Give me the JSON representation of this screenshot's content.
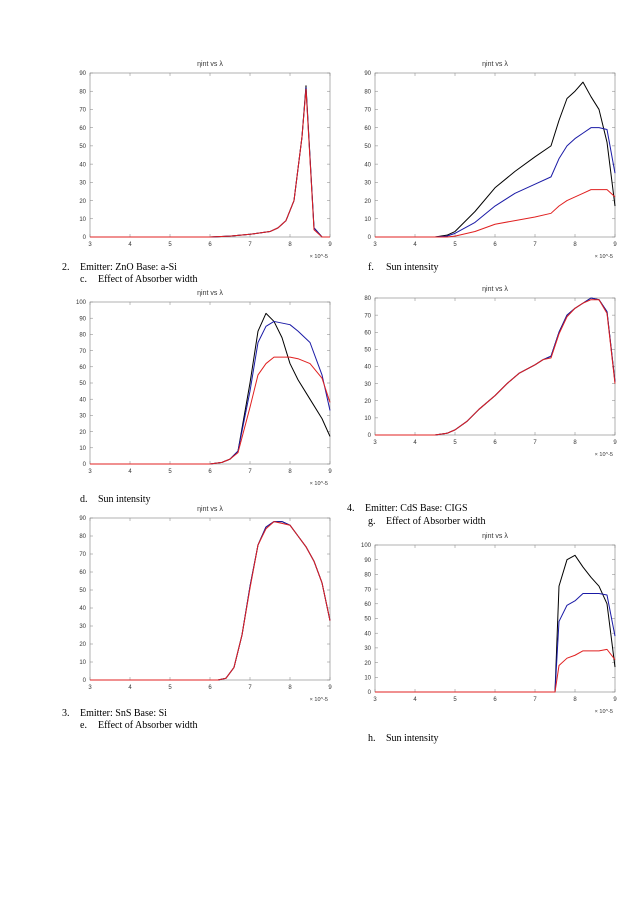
{
  "captions": {
    "c2": {
      "num": "2.",
      "text": "Emitter: ZnO Base: a-Si"
    },
    "c_c": {
      "num": "c.",
      "text": "Effect of Absorber width"
    },
    "c_d": {
      "num": "d.",
      "text": "Sun intensity"
    },
    "c3": {
      "num": "3.",
      "text": "Emitter: SnS Base: Si"
    },
    "c_e": {
      "num": "e.",
      "text": "Effect of Absorber width"
    },
    "c_f": {
      "num": "f.",
      "text": "Sun intensity"
    },
    "c4": {
      "num": "4.",
      "text": "Emitter: CdS  Base: CIGS"
    },
    "c_g": {
      "num": "g.",
      "text": "Effect of Absorber width"
    },
    "c_h": {
      "num": "h.",
      "text": "Sun intensity"
    }
  },
  "chart_data": [
    {
      "id": "plot-1",
      "type": "line",
      "title": "ηint vs λ",
      "xlim": [
        3,
        9
      ],
      "ylim": [
        0,
        90
      ],
      "xticks": [
        "3",
        "4",
        "5",
        "6",
        "7",
        "8",
        "9"
      ],
      "yticks": [
        "0",
        "10",
        "20",
        "30",
        "40",
        "50",
        "60",
        "70",
        "80",
        "90"
      ],
      "xmultiplier": "× 10^-5",
      "series": [
        {
          "color": "#000000",
          "x": [
            3,
            5.7,
            6,
            6.5,
            7,
            7.5,
            7.7,
            7.9,
            8.1,
            8.3,
            8.4,
            8.6,
            8.8,
            9
          ],
          "y": [
            0,
            0,
            0,
            0.5,
            1.5,
            3,
            5,
            9,
            20,
            55,
            83,
            5,
            0,
            0
          ]
        },
        {
          "color": "#1a1aa6",
          "x": [
            3,
            5.7,
            6,
            6.5,
            7,
            7.5,
            7.7,
            7.9,
            8.1,
            8.3,
            8.4,
            8.6,
            8.8,
            9
          ],
          "y": [
            0,
            0,
            0,
            0.5,
            1.5,
            3,
            5,
            9,
            20,
            55,
            82,
            5,
            0,
            0
          ]
        },
        {
          "color": "#e02020",
          "x": [
            3,
            5.7,
            6,
            6.5,
            7,
            7.5,
            7.7,
            7.9,
            8.1,
            8.3,
            8.4,
            8.6,
            8.8,
            9
          ],
          "y": [
            0,
            0,
            0,
            0.5,
            1.5,
            3,
            5,
            9,
            20,
            55,
            81,
            4,
            0,
            0
          ]
        }
      ]
    },
    {
      "id": "plot-2",
      "type": "line",
      "title": "ηint vs λ",
      "xlim": [
        3,
        9
      ],
      "ylim": [
        0,
        100
      ],
      "xticks": [
        "3",
        "4",
        "5",
        "6",
        "7",
        "8",
        "9"
      ],
      "yticks": [
        "0",
        "10",
        "20",
        "30",
        "40",
        "50",
        "60",
        "70",
        "80",
        "90",
        "100"
      ],
      "xmultiplier": "× 10^-5",
      "series": [
        {
          "color": "#000000",
          "x": [
            3,
            6,
            6.3,
            6.5,
            6.7,
            7,
            7.2,
            7.4,
            7.6,
            7.8,
            8,
            8.2,
            8.5,
            8.8,
            9
          ],
          "y": [
            0,
            0,
            1,
            3,
            8,
            50,
            82,
            93,
            88,
            78,
            62,
            52,
            40,
            28,
            17
          ]
        },
        {
          "color": "#1a1aa6",
          "x": [
            3,
            6,
            6.3,
            6.5,
            6.7,
            7,
            7.2,
            7.4,
            7.6,
            7.8,
            8,
            8.2,
            8.5,
            8.8,
            9
          ],
          "y": [
            0,
            0,
            1,
            3,
            8,
            45,
            75,
            85,
            88,
            87,
            86,
            82,
            75,
            55,
            33
          ]
        },
        {
          "color": "#e02020",
          "x": [
            3,
            6,
            6.3,
            6.5,
            6.7,
            7,
            7.2,
            7.4,
            7.6,
            7.8,
            8,
            8.2,
            8.5,
            8.8,
            9
          ],
          "y": [
            0,
            0,
            1,
            3,
            7,
            35,
            55,
            62,
            66,
            66,
            66,
            65,
            62,
            53,
            38
          ]
        }
      ]
    },
    {
      "id": "plot-3",
      "type": "line",
      "title": "ηint vs λ",
      "xlim": [
        3,
        9
      ],
      "ylim": [
        0,
        90
      ],
      "xticks": [
        "3",
        "4",
        "5",
        "6",
        "7",
        "8",
        "9"
      ],
      "yticks": [
        "0",
        "10",
        "20",
        "30",
        "40",
        "50",
        "60",
        "70",
        "80",
        "90"
      ],
      "xmultiplier": "× 10^-5",
      "series": [
        {
          "color": "#000000",
          "x": [
            3,
            6.2,
            6.4,
            6.6,
            6.8,
            7,
            7.2,
            7.4,
            7.6,
            7.8,
            8,
            8.2,
            8.4,
            8.6,
            8.8,
            9
          ],
          "y": [
            0,
            0,
            1,
            7,
            25,
            52,
            75,
            85,
            88,
            88,
            86,
            80,
            74,
            66,
            54,
            33
          ]
        },
        {
          "color": "#1a1aa6",
          "x": [
            3,
            6.2,
            6.4,
            6.6,
            6.8,
            7,
            7.2,
            7.4,
            7.6,
            7.8,
            8,
            8.2,
            8.4,
            8.6,
            8.8,
            9
          ],
          "y": [
            0,
            0,
            1,
            7,
            25,
            52,
            75,
            85,
            88,
            88,
            86,
            80,
            74,
            66,
            54,
            33
          ]
        },
        {
          "color": "#e02020",
          "x": [
            3,
            6.2,
            6.4,
            6.6,
            6.8,
            7,
            7.2,
            7.4,
            7.6,
            7.8,
            8,
            8.2,
            8.4,
            8.6,
            8.8,
            9
          ],
          "y": [
            0,
            0,
            1,
            7,
            25,
            51,
            75,
            84,
            88,
            87,
            86,
            80,
            74,
            66,
            54,
            33
          ]
        }
      ]
    },
    {
      "id": "plot-4",
      "type": "line",
      "title": "ηint vs λ",
      "xlim": [
        3,
        9
      ],
      "ylim": [
        0,
        90
      ],
      "xticks": [
        "3",
        "4",
        "5",
        "6",
        "7",
        "8",
        "9"
      ],
      "yticks": [
        "0",
        "10",
        "20",
        "30",
        "40",
        "50",
        "60",
        "70",
        "80",
        "90"
      ],
      "xmultiplier": "× 10^-5",
      "series": [
        {
          "color": "#000000",
          "x": [
            3,
            4.5,
            4.8,
            5,
            5.5,
            6,
            6.5,
            7,
            7.4,
            7.6,
            7.8,
            8,
            8.2,
            8.4,
            8.6,
            8.8,
            9
          ],
          "y": [
            0,
            0,
            1,
            3,
            14,
            27,
            36,
            44,
            50,
            64,
            76,
            80,
            85,
            77,
            70,
            52,
            17
          ]
        },
        {
          "color": "#1a1aa6",
          "x": [
            3,
            4.5,
            4.8,
            5,
            5.5,
            6,
            6.5,
            7,
            7.4,
            7.6,
            7.8,
            8,
            8.2,
            8.4,
            8.6,
            8.8,
            9
          ],
          "y": [
            0,
            0,
            0.5,
            2,
            8,
            17,
            24,
            29,
            33,
            43,
            50,
            54,
            57,
            60,
            60,
            59,
            35
          ]
        },
        {
          "color": "#e02020",
          "x": [
            3,
            4.5,
            4.8,
            5,
            5.5,
            6,
            6.5,
            7,
            7.4,
            7.6,
            7.8,
            8,
            8.2,
            8.4,
            8.6,
            8.8,
            9
          ],
          "y": [
            0,
            0,
            0,
            0.5,
            3,
            7,
            9,
            11,
            13,
            17,
            20,
            22,
            24,
            26,
            26,
            26,
            22
          ]
        }
      ]
    },
    {
      "id": "plot-5",
      "type": "line",
      "title": "ηint vs λ",
      "xlim": [
        3,
        9
      ],
      "ylim": [
        0,
        80
      ],
      "xticks": [
        "3",
        "4",
        "5",
        "6",
        "7",
        "8",
        "9"
      ],
      "yticks": [
        "0",
        "10",
        "20",
        "30",
        "40",
        "50",
        "60",
        "70",
        "80"
      ],
      "xmultiplier": "× 10^-5",
      "series": [
        {
          "color": "#000000",
          "x": [
            3,
            4.5,
            4.8,
            5,
            5.3,
            5.6,
            6,
            6.3,
            6.6,
            7,
            7.2,
            7.4,
            7.6,
            7.8,
            8,
            8.2,
            8.4,
            8.6,
            8.8,
            9
          ],
          "y": [
            0,
            0,
            1,
            3,
            8,
            15,
            23,
            30,
            36,
            41,
            44,
            46,
            60,
            70,
            74,
            77,
            80,
            79,
            72,
            31
          ]
        },
        {
          "color": "#1a1aa6",
          "x": [
            3,
            4.5,
            4.8,
            5,
            5.3,
            5.6,
            6,
            6.3,
            6.6,
            7,
            7.2,
            7.4,
            7.6,
            7.8,
            8,
            8.2,
            8.4,
            8.6,
            8.8,
            9
          ],
          "y": [
            0,
            0,
            1,
            3,
            8,
            15,
            23,
            30,
            36,
            41,
            44,
            46,
            60,
            70,
            74,
            77,
            80,
            79,
            72,
            31
          ]
        },
        {
          "color": "#e02020",
          "x": [
            3,
            4.5,
            4.8,
            5,
            5.3,
            5.6,
            6,
            6.3,
            6.6,
            7,
            7.2,
            7.4,
            7.6,
            7.8,
            8,
            8.2,
            8.4,
            8.6,
            8.8,
            9
          ],
          "y": [
            0,
            0,
            1,
            3,
            8,
            15,
            23,
            30,
            36,
            41,
            44,
            45,
            59,
            69,
            74,
            77,
            79,
            79,
            71,
            30
          ]
        }
      ]
    },
    {
      "id": "plot-6",
      "type": "line",
      "title": "ηint vs λ",
      "xlim": [
        3,
        9
      ],
      "ylim": [
        0,
        100
      ],
      "xticks": [
        "3",
        "4",
        "5",
        "6",
        "7",
        "8",
        "9"
      ],
      "yticks": [
        "0",
        "10",
        "20",
        "30",
        "40",
        "50",
        "60",
        "70",
        "80",
        "90",
        "100"
      ],
      "xmultiplier": "× 10^-5",
      "series": [
        {
          "color": "#000000",
          "x": [
            3,
            7.5,
            7.6,
            7.8,
            8,
            8.2,
            8.4,
            8.6,
            8.8,
            9
          ],
          "y": [
            0,
            0,
            72,
            90,
            93,
            85,
            78,
            72,
            60,
            17
          ]
        },
        {
          "color": "#1a1aa6",
          "x": [
            3,
            7.5,
            7.6,
            7.8,
            8,
            8.2,
            8.4,
            8.6,
            8.8,
            9
          ],
          "y": [
            0,
            0,
            48,
            59,
            62,
            67,
            67,
            67,
            66,
            38
          ]
        },
        {
          "color": "#e02020",
          "x": [
            3,
            7.5,
            7.6,
            7.8,
            8,
            8.2,
            8.4,
            8.6,
            8.8,
            9
          ],
          "y": [
            0,
            0,
            18,
            23,
            25,
            28,
            28,
            28,
            29,
            22
          ]
        }
      ]
    }
  ]
}
